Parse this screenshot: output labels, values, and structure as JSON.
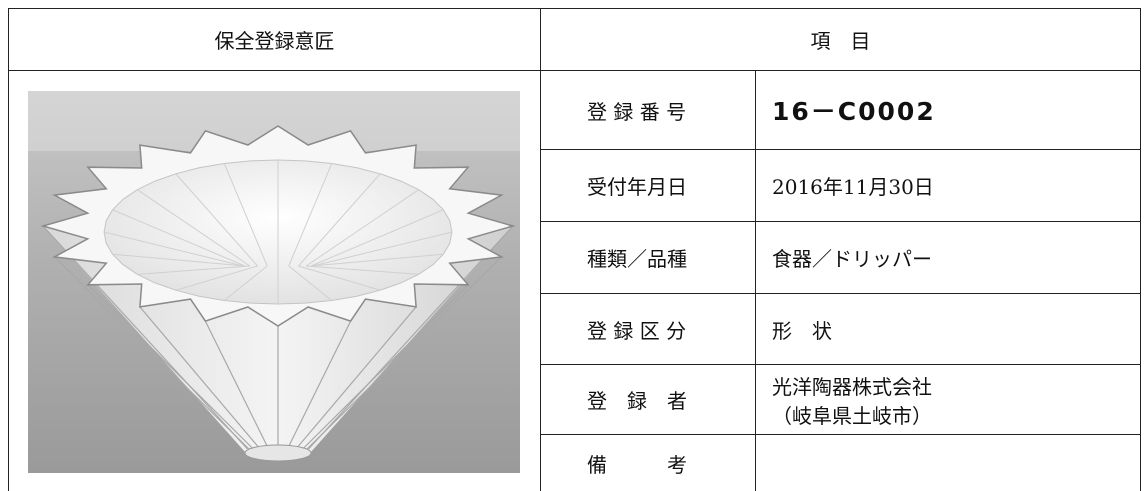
{
  "header": {
    "design": "保全登録意匠",
    "items": "項　目"
  },
  "rows": [
    {
      "label": "登 録 番 号",
      "value": "16－C0002"
    },
    {
      "label": "受付年月日",
      "value": "2016年11月30日"
    },
    {
      "label": "種類／品種",
      "value": "食器／ドリッパー"
    },
    {
      "label": "登 録 区 分",
      "value": "形　状"
    },
    {
      "label": "登　録　者",
      "value": [
        "光洋陶器株式会社",
        "（岐阜県土岐市）"
      ]
    },
    {
      "label": "備　　　考"
    }
  ]
}
